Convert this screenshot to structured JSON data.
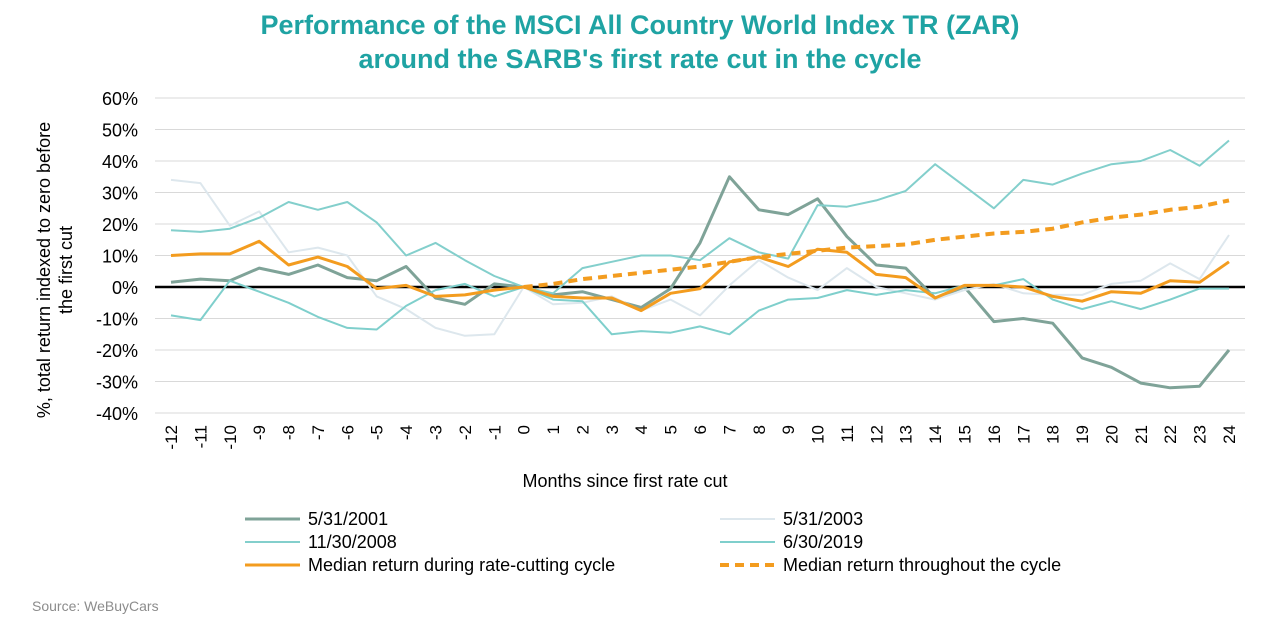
{
  "chart_data": {
    "type": "line",
    "title": [
      "Performance of the MSCI All Country World Index TR (ZAR)",
      "around the SARB's first rate cut in the cycle"
    ],
    "xlabel": "Months since first rate cut",
    "ylabel": [
      "%, total return indexed to zero before",
      "the first cut"
    ],
    "x": [
      -12,
      -11,
      -10,
      -9,
      -8,
      -7,
      -6,
      -5,
      -4,
      -3,
      -2,
      -1,
      0,
      1,
      2,
      3,
      4,
      5,
      6,
      7,
      8,
      9,
      10,
      11,
      12,
      13,
      14,
      15,
      16,
      17,
      18,
      19,
      20,
      21,
      22,
      23,
      24
    ],
    "y_ticks": [
      "-40%",
      "-30%",
      "-20%",
      "-10%",
      "0%",
      "10%",
      "20%",
      "30%",
      "40%",
      "50%",
      "60%"
    ],
    "ylim": [
      -40,
      60
    ],
    "grid": true,
    "legend_position": "bottom",
    "series": [
      {
        "name": "5/31/2001",
        "color": "#7fa398",
        "dashed": false,
        "width": 3,
        "values": [
          1.5,
          2.5,
          2,
          6,
          4,
          7,
          3,
          2,
          6.5,
          -3.5,
          -5.5,
          1,
          0,
          -2.5,
          -1.5,
          -4,
          -6.5,
          -0.5,
          14,
          35,
          24.5,
          23,
          28,
          16,
          7,
          6,
          -3.5,
          0,
          -11,
          -10,
          -11.5,
          -22.5,
          -25.5,
          -30.5,
          -32,
          -31.5,
          -20
        ]
      },
      {
        "name": "5/31/2003",
        "color": "#dde7ed",
        "dashed": false,
        "width": 2,
        "values": [
          34,
          33,
          19.5,
          24,
          11,
          12.5,
          10,
          -3,
          -7,
          -13,
          -15.5,
          -15,
          0,
          -5.5,
          -5,
          -3,
          -7.5,
          -4,
          -9,
          0.5,
          8.5,
          3,
          -1,
          6,
          0,
          -2,
          -4,
          -1,
          1,
          -2,
          -2.5,
          -2.5,
          1,
          2,
          7.5,
          2.5,
          16.5
        ]
      },
      {
        "name": "11/30/2008",
        "color": "#83cfcc",
        "dashed": false,
        "width": 2,
        "values": [
          18,
          17.5,
          18.5,
          22,
          27,
          24.5,
          27,
          20.5,
          10,
          14,
          8.5,
          3.5,
          0,
          -2,
          6,
          8,
          10,
          10,
          8.5,
          15.5,
          11,
          9,
          26,
          25.5,
          27.5,
          30.5,
          39,
          32,
          25,
          34,
          32.5,
          36,
          39,
          40,
          43.5,
          38.5,
          46.5
        ]
      },
      {
        "name": "6/30/2019",
        "color": "#7fcfcc",
        "dashed": false,
        "width": 2,
        "values": [
          -9,
          -10.5,
          2,
          -1.5,
          -5,
          -9.5,
          -13,
          -13.5,
          -6,
          -1,
          1,
          -3,
          0,
          -4,
          -4.5,
          -15,
          -14,
          -14.5,
          -12.5,
          -15,
          -7.5,
          -4,
          -3.5,
          -1,
          -2.5,
          -1,
          -2,
          0.5,
          0.5,
          2.5,
          -4,
          -7,
          -4.5,
          -7,
          -4,
          -0.5,
          -0.5
        ]
      },
      {
        "name": "Median return during rate-cutting cycle",
        "color": "#f39c1f",
        "dashed": false,
        "width": 3,
        "values": [
          10,
          10.5,
          10.5,
          14.5,
          7,
          9.5,
          6.5,
          -0.5,
          0.5,
          -3,
          -2.5,
          -1,
          0,
          -3,
          -3.5,
          -3.5,
          -7.5,
          -2,
          -0.5,
          8,
          9.5,
          6.5,
          12,
          11,
          4,
          3,
          -3.5,
          0.5,
          0.5,
          0,
          -3,
          -4.5,
          -1.5,
          -2,
          2,
          1.5,
          8
        ]
      },
      {
        "name": "Median return throughout the cycle",
        "color": "#f39c1f",
        "dashed": true,
        "width": 4,
        "values": [
          null,
          null,
          null,
          null,
          null,
          null,
          null,
          null,
          null,
          null,
          null,
          null,
          0,
          1,
          2.5,
          3.5,
          4.5,
          5.5,
          6.5,
          8,
          9.5,
          10.5,
          11.5,
          12.5,
          13,
          13.5,
          15,
          16,
          17,
          17.5,
          18.5,
          20.5,
          22,
          23,
          24.5,
          25.5,
          27.5
        ]
      }
    ]
  },
  "source": "Source: WeBuyCars"
}
